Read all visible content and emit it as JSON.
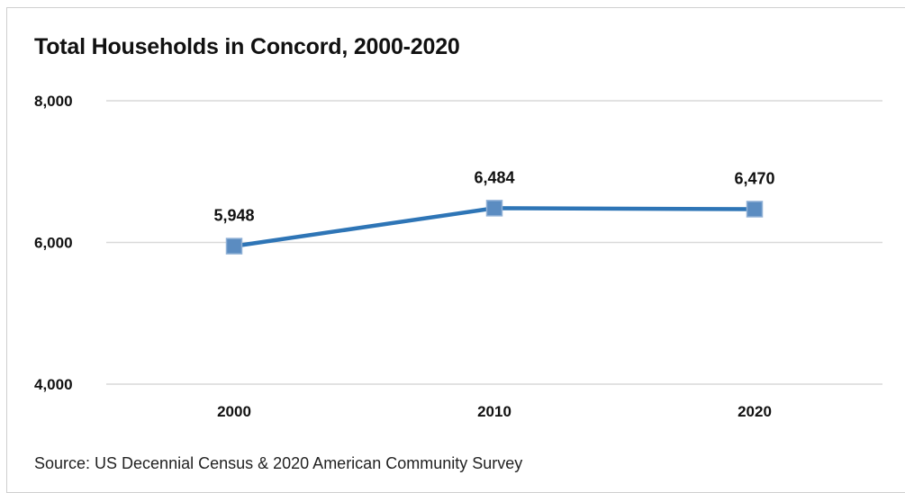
{
  "chart_data": {
    "type": "line",
    "title": "Total Households in Concord, 2000-2020",
    "categories": [
      "2000",
      "2010",
      "2020"
    ],
    "series": [
      {
        "values": [
          5948,
          6484,
          6470
        ],
        "data_labels": [
          "5,948",
          "6,484",
          "6,470"
        ],
        "color": "#2e75b6",
        "marker_color": "#5b8cc1",
        "marker": "square"
      }
    ],
    "ylim": [
      4000,
      8000
    ],
    "yticks": [
      4000,
      6000,
      8000
    ],
    "ytick_labels": [
      "4,000",
      "6,000",
      "8,000"
    ],
    "grid": true,
    "gridline_color": "#d9d9d9",
    "xlabel": "",
    "ylabel": "",
    "source": "Source: US Decennial Census & 2020 American Community Survey"
  }
}
